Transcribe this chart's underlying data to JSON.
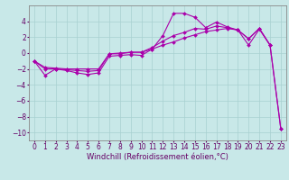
{
  "bg_color": "#c8e8e8",
  "grid_color": "#a8d0d0",
  "line_color": "#aa00aa",
  "marker_color": "#aa00aa",
  "xlabel": "Windchill (Refroidissement éolien,°C)",
  "xlabel_fontsize": 6.0,
  "tick_fontsize": 5.5,
  "xlim": [
    -0.5,
    23.5
  ],
  "ylim": [
    -11,
    6
  ],
  "yticks": [
    -10,
    -8,
    -6,
    -4,
    -2,
    0,
    2,
    4
  ],
  "xticks": [
    0,
    1,
    2,
    3,
    4,
    5,
    6,
    7,
    8,
    9,
    10,
    11,
    12,
    13,
    14,
    15,
    16,
    17,
    18,
    19,
    20,
    21,
    22,
    23
  ],
  "s1x": [
    0,
    1,
    2,
    3,
    4,
    5,
    6,
    7,
    8,
    9,
    10,
    11,
    12,
    13,
    14,
    15,
    16,
    17,
    18,
    19,
    20,
    21,
    22
  ],
  "s1y": [
    -1.0,
    -2.8,
    -2.0,
    -2.2,
    -2.5,
    -2.7,
    -2.5,
    -0.4,
    -0.3,
    -0.2,
    -0.3,
    0.5,
    2.2,
    5.0,
    5.0,
    4.5,
    3.2,
    3.9,
    3.3,
    2.9,
    1.0,
    3.0,
    1.0
  ],
  "s2x": [
    0,
    1,
    2,
    3,
    4,
    5,
    6,
    7,
    8,
    9,
    10,
    11,
    12,
    13,
    14,
    15,
    16,
    17,
    18,
    19,
    20,
    21,
    22,
    23
  ],
  "s2y": [
    -1.0,
    -2.0,
    -2.0,
    -2.1,
    -2.2,
    -2.3,
    -2.2,
    -0.1,
    -0.1,
    0.1,
    0.1,
    0.7,
    1.5,
    2.2,
    2.6,
    3.1,
    3.0,
    3.4,
    3.2,
    2.9,
    1.8,
    3.1,
    1.0,
    -9.5
  ],
  "s3x": [
    0,
    1,
    2,
    3,
    4,
    5,
    6,
    7,
    8,
    9,
    10,
    11,
    12,
    13,
    14,
    15,
    16,
    17,
    18,
    19,
    20,
    21,
    22,
    23
  ],
  "s3y": [
    -1.0,
    -1.8,
    -1.9,
    -2.0,
    -2.0,
    -2.0,
    -2.0,
    -0.1,
    0.0,
    0.1,
    0.1,
    0.5,
    1.0,
    1.4,
    1.9,
    2.3,
    2.7,
    2.9,
    3.1,
    2.9,
    1.8,
    3.1,
    1.0,
    -9.5
  ]
}
